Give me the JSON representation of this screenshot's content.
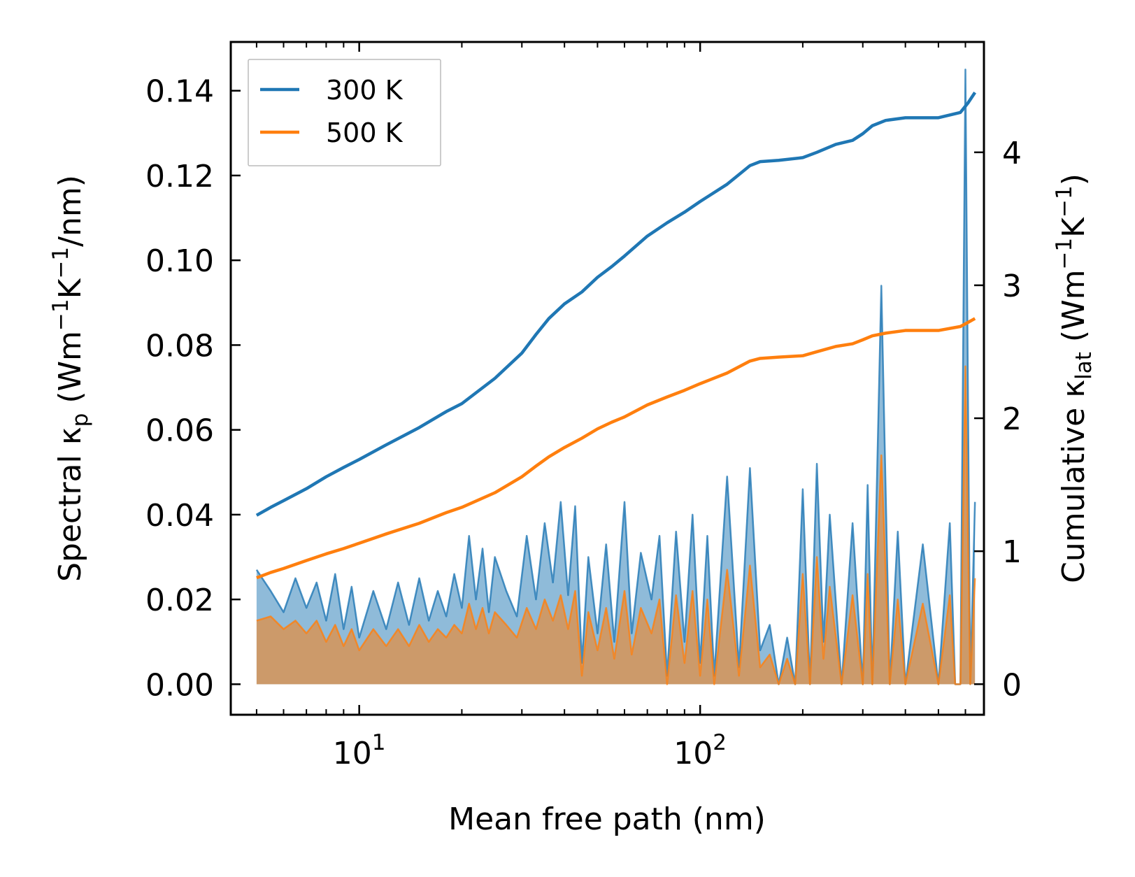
{
  "chart_data": {
    "type": "line",
    "title": "",
    "xlabel": "Mean free path (nm)",
    "ylabel_left": {
      "prefix": "Spectral κ",
      "sub": "p",
      "mid": " (Wm",
      "sup1": "−1",
      "k": "K",
      "sup2": "−1",
      "suffix": "/nm)"
    },
    "ylabel_right": {
      "prefix": "Cumulative κ",
      "sub": "lat",
      "mid": " (Wm",
      "sup1": "−1",
      "k": "K",
      "sup2": "−1",
      "suffix": ")"
    },
    "xscale": "log",
    "xlim": [
      4.2,
      680
    ],
    "ylim_left": [
      -0.0072,
      0.1515
    ],
    "ylim_right": [
      -0.23,
      4.83
    ],
    "x_ticks": [
      {
        "value": 10,
        "base": "10",
        "exp": "1"
      },
      {
        "value": 100,
        "base": "10",
        "exp": "2"
      }
    ],
    "y_left_ticks": [
      {
        "value": 0.0,
        "label": "0.00"
      },
      {
        "value": 0.02,
        "label": "0.02"
      },
      {
        "value": 0.04,
        "label": "0.04"
      },
      {
        "value": 0.06,
        "label": "0.06"
      },
      {
        "value": 0.08,
        "label": "0.08"
      },
      {
        "value": 0.1,
        "label": "0.10"
      },
      {
        "value": 0.12,
        "label": "0.12"
      },
      {
        "value": 0.14,
        "label": "0.14"
      }
    ],
    "y_right_ticks": [
      {
        "value": 0,
        "label": "0"
      },
      {
        "value": 1,
        "label": "1"
      },
      {
        "value": 2,
        "label": "2"
      },
      {
        "value": 3,
        "label": "3"
      },
      {
        "value": 4,
        "label": "4"
      }
    ],
    "legend": {
      "placement": "top-left",
      "entries": [
        {
          "label": "300 K",
          "color": "#1f77b4"
        },
        {
          "label": "500 K",
          "color": "#ff7f0e"
        }
      ]
    },
    "series": [
      {
        "name": "300 K",
        "color": "#1f77b4",
        "cumulative_axis": "right",
        "cumulative": {
          "x": [
            5.0,
            5.5,
            6.0,
            7.0,
            8.0,
            9.0,
            10.0,
            12.0,
            15.0,
            18.0,
            20.0,
            25.0,
            30.0,
            33.0,
            36.0,
            40.0,
            45.0,
            50.0,
            55.0,
            60.0,
            70.0,
            80.0,
            90.0,
            100.0,
            120.0,
            140.0,
            150.0,
            170.0,
            200.0,
            220.0,
            250.0,
            280.0,
            300.0,
            320.0,
            350.0,
            400.0,
            500.0,
            580.0,
            610.0,
            640.0
          ],
          "y": [
            1.27,
            1.33,
            1.38,
            1.47,
            1.56,
            1.63,
            1.69,
            1.8,
            1.93,
            2.05,
            2.11,
            2.3,
            2.49,
            2.63,
            2.75,
            2.86,
            2.95,
            3.06,
            3.14,
            3.22,
            3.37,
            3.47,
            3.55,
            3.63,
            3.76,
            3.9,
            3.93,
            3.94,
            3.96,
            4.0,
            4.06,
            4.09,
            4.14,
            4.2,
            4.24,
            4.26,
            4.26,
            4.3,
            4.37,
            4.45
          ]
        },
        "spectral": {
          "x": [
            5.0,
            5.5,
            6.0,
            6.5,
            7.0,
            7.5,
            8.0,
            8.5,
            9.0,
            9.5,
            10.0,
            11.0,
            12.0,
            13.0,
            14.0,
            15.0,
            16.0,
            17.0,
            18.0,
            19.0,
            20.0,
            21.0,
            22.0,
            23.0,
            24.0,
            25.0,
            27.0,
            29.0,
            31.0,
            33.0,
            35.0,
            37.0,
            39.0,
            41.0,
            43.0,
            45.0,
            47.0,
            50.0,
            53.0,
            56.0,
            60.0,
            63.0,
            67.0,
            72.0,
            76.0,
            80.0,
            85.0,
            90.0,
            95.0,
            100.0,
            105.0,
            110.0,
            120.0,
            130.0,
            140.0,
            150.0,
            160.0,
            170.0,
            180.0,
            190.0,
            200.0,
            210.0,
            220.0,
            230.0,
            240.0,
            260.0,
            280.0,
            300.0,
            310.0,
            320.0,
            340.0,
            360.0,
            380.0,
            400.0,
            450.0,
            500.0,
            540.0,
            560.0,
            580.0,
            600.0,
            620.0,
            640.0
          ],
          "y": [
            0.027,
            0.022,
            0.017,
            0.025,
            0.018,
            0.024,
            0.015,
            0.026,
            0.013,
            0.023,
            0.011,
            0.022,
            0.013,
            0.024,
            0.014,
            0.025,
            0.015,
            0.022,
            0.016,
            0.026,
            0.018,
            0.035,
            0.02,
            0.032,
            0.017,
            0.03,
            0.022,
            0.016,
            0.035,
            0.02,
            0.038,
            0.024,
            0.043,
            0.021,
            0.042,
            0.005,
            0.03,
            0.012,
            0.033,
            0.01,
            0.043,
            0.012,
            0.031,
            0.02,
            0.035,
            0.002,
            0.036,
            0.01,
            0.04,
            0.005,
            0.035,
            0.002,
            0.049,
            0.004,
            0.051,
            0.008,
            0.014,
            0.0,
            0.011,
            0.0,
            0.046,
            0.0,
            0.052,
            0.01,
            0.04,
            0.0,
            0.038,
            0.0,
            0.047,
            0.0,
            0.094,
            0.0,
            0.036,
            0.0,
            0.033,
            0.0,
            0.038,
            0.0,
            0.0,
            0.145,
            0.0,
            0.043
          ]
        }
      },
      {
        "name": "500 K",
        "color": "#ff7f0e",
        "cumulative_axis": "right",
        "cumulative": {
          "x": [
            5.0,
            5.5,
            6.0,
            7.0,
            8.0,
            9.0,
            10.0,
            12.0,
            15.0,
            18.0,
            20.0,
            25.0,
            30.0,
            33.0,
            36.0,
            40.0,
            45.0,
            50.0,
            55.0,
            60.0,
            70.0,
            80.0,
            90.0,
            100.0,
            120.0,
            140.0,
            150.0,
            170.0,
            200.0,
            220.0,
            250.0,
            280.0,
            300.0,
            320.0,
            350.0,
            400.0,
            500.0,
            580.0,
            610.0,
            640.0
          ],
          "y": [
            0.8,
            0.84,
            0.87,
            0.93,
            0.98,
            1.02,
            1.06,
            1.13,
            1.21,
            1.29,
            1.33,
            1.44,
            1.56,
            1.64,
            1.71,
            1.78,
            1.85,
            1.92,
            1.97,
            2.01,
            2.1,
            2.16,
            2.21,
            2.26,
            2.34,
            2.43,
            2.45,
            2.46,
            2.47,
            2.5,
            2.54,
            2.56,
            2.59,
            2.62,
            2.64,
            2.66,
            2.66,
            2.69,
            2.72,
            2.75
          ]
        },
        "spectral": {
          "x": [
            5.0,
            5.5,
            6.0,
            6.5,
            7.0,
            7.5,
            8.0,
            8.5,
            9.0,
            9.5,
            10.0,
            11.0,
            12.0,
            13.0,
            14.0,
            15.0,
            16.0,
            17.0,
            18.0,
            19.0,
            20.0,
            21.0,
            22.0,
            23.0,
            24.0,
            25.0,
            27.0,
            29.0,
            31.0,
            33.0,
            35.0,
            37.0,
            39.0,
            41.0,
            43.0,
            45.0,
            47.0,
            50.0,
            53.0,
            56.0,
            60.0,
            63.0,
            67.0,
            72.0,
            76.0,
            80.0,
            85.0,
            90.0,
            95.0,
            100.0,
            105.0,
            110.0,
            120.0,
            130.0,
            140.0,
            150.0,
            160.0,
            170.0,
            180.0,
            190.0,
            200.0,
            210.0,
            220.0,
            230.0,
            240.0,
            260.0,
            280.0,
            300.0,
            310.0,
            320.0,
            340.0,
            360.0,
            380.0,
            400.0,
            450.0,
            500.0,
            540.0,
            560.0,
            580.0,
            600.0,
            620.0,
            640.0
          ],
          "y": [
            0.015,
            0.016,
            0.013,
            0.015,
            0.012,
            0.015,
            0.01,
            0.014,
            0.009,
            0.013,
            0.008,
            0.013,
            0.009,
            0.013,
            0.009,
            0.014,
            0.01,
            0.013,
            0.011,
            0.014,
            0.012,
            0.019,
            0.013,
            0.018,
            0.012,
            0.017,
            0.014,
            0.011,
            0.018,
            0.013,
            0.02,
            0.015,
            0.021,
            0.013,
            0.022,
            0.002,
            0.017,
            0.008,
            0.018,
            0.006,
            0.022,
            0.007,
            0.018,
            0.012,
            0.02,
            0.0,
            0.021,
            0.005,
            0.022,
            0.002,
            0.02,
            0.0,
            0.027,
            0.002,
            0.028,
            0.004,
            0.007,
            0.0,
            0.006,
            0.0,
            0.026,
            0.0,
            0.03,
            0.006,
            0.023,
            0.0,
            0.021,
            0.0,
            0.026,
            0.0,
            0.054,
            0.0,
            0.02,
            0.0,
            0.019,
            0.0,
            0.021,
            0.0,
            0.0,
            0.075,
            0.0,
            0.025
          ]
        }
      }
    ]
  }
}
